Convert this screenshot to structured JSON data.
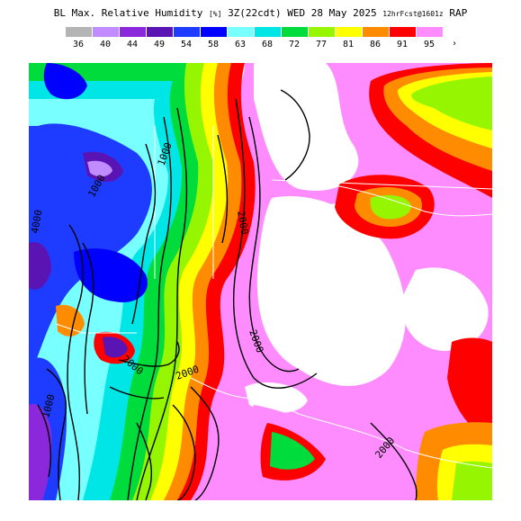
{
  "header": {
    "product": "BL Max. Relative Humidity",
    "unit": "[%]",
    "valid_time": "3Z(22cdt) WED 28 May 2025",
    "forecast": "12hrFcst@1601z",
    "model": "RAP"
  },
  "legend": {
    "levels": [
      {
        "label": "36",
        "color": "#b4b4b4"
      },
      {
        "label": "40",
        "color": "#c08cff"
      },
      {
        "label": "44",
        "color": "#8c28dc"
      },
      {
        "label": "49",
        "color": "#5a14b4"
      },
      {
        "label": "54",
        "color": "#1e3cff"
      },
      {
        "label": "58",
        "color": "#0000ff"
      },
      {
        "label": "63",
        "color": "#78ffff"
      },
      {
        "label": "68",
        "color": "#00e6e6"
      },
      {
        "label": "72",
        "color": "#00dc3c"
      },
      {
        "label": "77",
        "color": "#96f500"
      },
      {
        "label": "81",
        "color": "#ffff00"
      },
      {
        "label": "86",
        "color": "#ff8c00"
      },
      {
        "label": "91",
        "color": "#ff0000"
      },
      {
        "label": "95",
        "color": "#ff8cff"
      }
    ],
    "overflow_marker": "›"
  },
  "contours": {
    "labels": [
      "1000",
      "2000",
      "2000",
      "2000",
      "2000",
      "1000",
      "1000",
      "4000",
      "2000"
    ]
  }
}
